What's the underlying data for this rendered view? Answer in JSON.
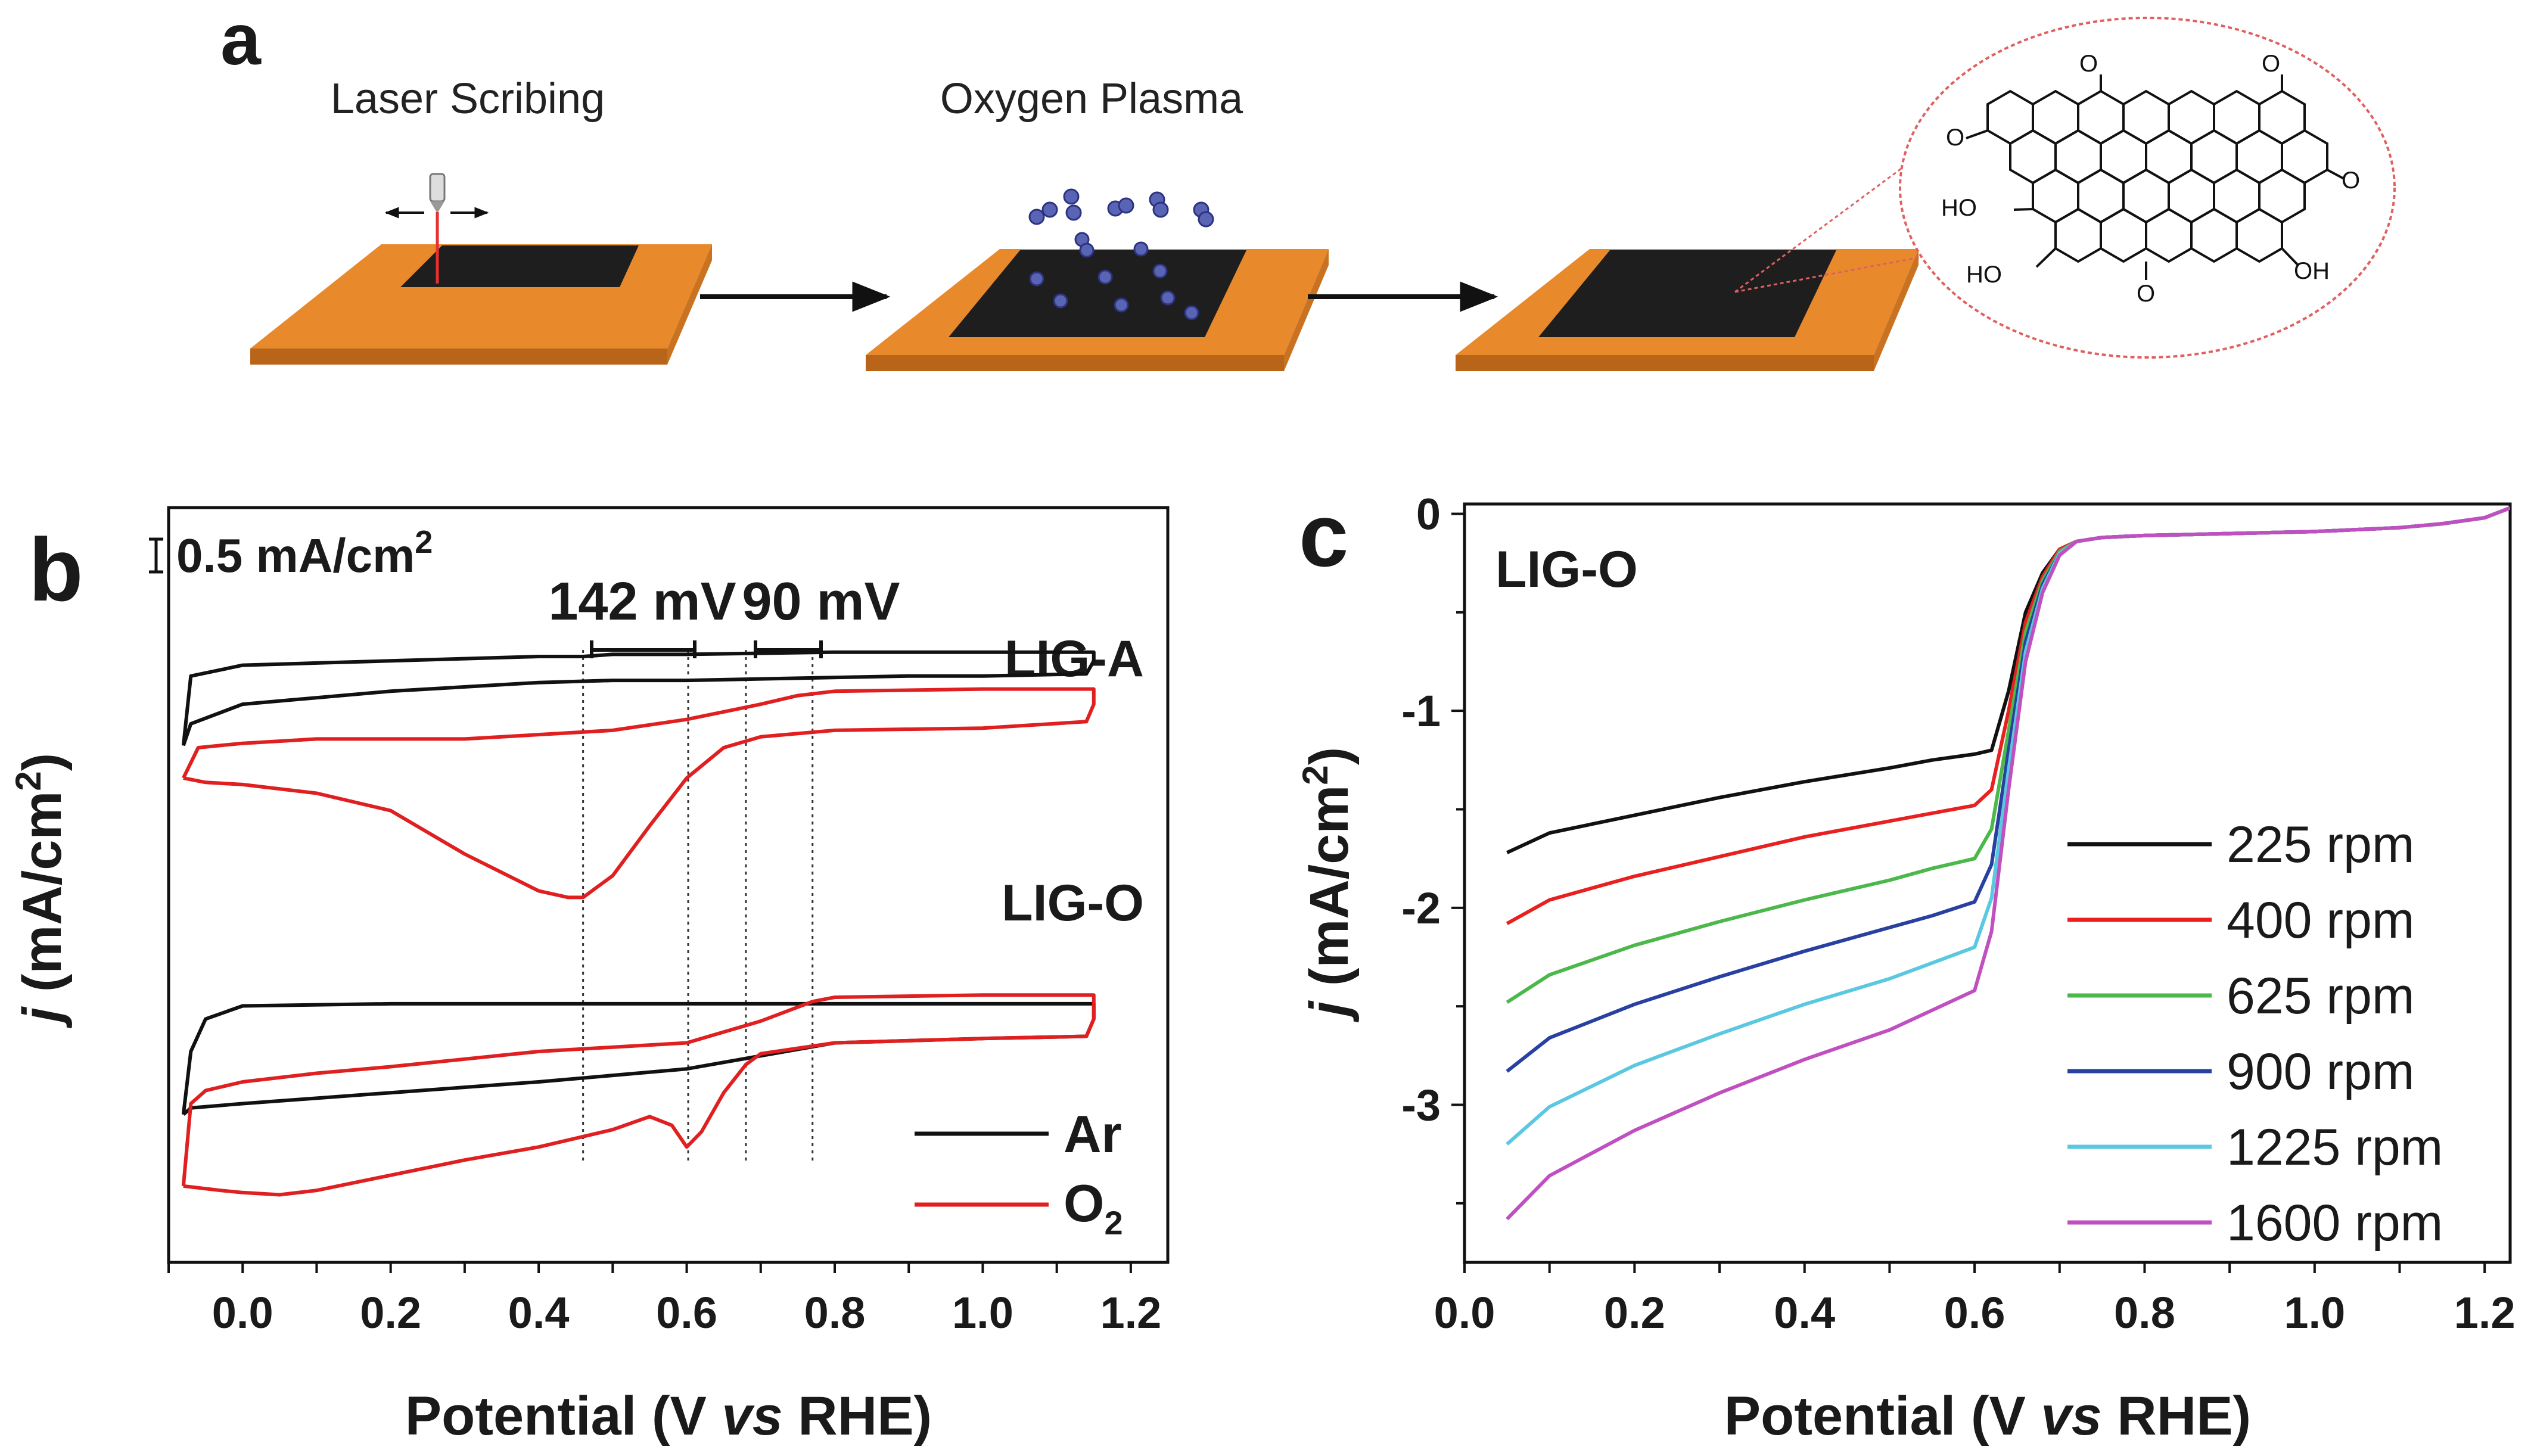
{
  "panel_a": {
    "label": "a",
    "steps": [
      "Laser Scribing",
      "Oxygen Plasma"
    ],
    "molecule_labels": {
      "carbonyl": "O",
      "hydroxyl": "HO",
      "hydroxyl_right": "OH"
    },
    "colors": {
      "substrate": "#E8892B",
      "substrate_edge": "#B8651A",
      "film": "#1E1E1E",
      "plasma": "#5A64B4",
      "laser": "#E53030",
      "inset": "#E06060"
    }
  },
  "chart_data": [
    {
      "panel": "b",
      "type": "line",
      "title": "",
      "xlabel": "Potential (V vs RHE)",
      "ylabel": "j (mA/cm2)",
      "xlim": [
        -0.1,
        1.25
      ],
      "xticks": [
        "0.0",
        "0.2",
        "0.4",
        "0.6",
        "0.8",
        "1.0",
        "1.2"
      ],
      "scale_bar": {
        "value": 0.5,
        "label": "0.5 mA/cm2"
      },
      "annotations": [
        "142 mV",
        "90 mV"
      ],
      "reference_potentials": [
        0.46,
        0.602,
        0.68,
        0.77
      ],
      "groups": [
        {
          "name": "LIG-A",
          "series": [
            {
              "name": "Ar",
              "color": "#111111",
              "x": [
                -0.08,
                -0.07,
                0.0,
                0.2,
                0.4,
                0.5,
                0.6,
                0.75,
                0.9,
                1.0,
                1.14,
                1.15,
                1.15,
                1.0,
                0.8,
                0.6,
                0.5,
                0.46,
                0.4,
                0.3,
                0.2,
                0.1,
                0.0,
                -0.07,
                -0.08
              ],
              "y": [
                -1.05,
                -0.95,
                -0.86,
                -0.8,
                -0.76,
                -0.75,
                -0.75,
                -0.74,
                -0.73,
                -0.73,
                -0.72,
                -0.66,
                -0.62,
                -0.62,
                -0.62,
                -0.63,
                -0.63,
                -0.64,
                -0.64,
                -0.65,
                -0.66,
                -0.67,
                -0.68,
                -0.73,
                -1.05
              ]
            },
            {
              "name": "O2",
              "color": "#E02020",
              "x": [
                -0.08,
                -0.05,
                0.0,
                0.1,
                0.2,
                0.3,
                0.4,
                0.44,
                0.46,
                0.5,
                0.55,
                0.6,
                0.65,
                0.7,
                0.8,
                1.0,
                1.14,
                1.15,
                1.15,
                1.0,
                0.8,
                0.75,
                0.7,
                0.6,
                0.5,
                0.3,
                0.2,
                0.1,
                0.0,
                -0.06,
                -0.08
              ],
              "y": [
                -1.2,
                -1.22,
                -1.23,
                -1.27,
                -1.35,
                -1.55,
                -1.72,
                -1.75,
                -1.75,
                -1.65,
                -1.42,
                -1.2,
                -1.06,
                -1.01,
                -0.98,
                -0.97,
                -0.94,
                -0.86,
                -0.79,
                -0.79,
                -0.8,
                -0.82,
                -0.86,
                -0.93,
                -0.98,
                -1.02,
                -1.02,
                -1.02,
                -1.04,
                -1.06,
                -1.2
              ]
            }
          ]
        },
        {
          "name": "LIG-O",
          "series": [
            {
              "name": "Ar",
              "color": "#111111",
              "x": [
                -0.08,
                -0.07,
                0.0,
                0.2,
                0.4,
                0.6,
                0.7,
                0.8,
                1.0,
                1.14,
                1.15,
                1.15,
                1.0,
                0.8,
                0.6,
                0.4,
                0.2,
                0.0,
                -0.05,
                -0.07,
                -0.08
              ],
              "y": [
                -2.75,
                -2.72,
                -2.7,
                -2.65,
                -2.6,
                -2.54,
                -2.48,
                -2.42,
                -2.4,
                -2.39,
                -2.31,
                -2.24,
                -2.24,
                -2.24,
                -2.24,
                -2.24,
                -2.24,
                -2.25,
                -2.31,
                -2.46,
                -2.75
              ]
            },
            {
              "name": "O2",
              "color": "#E02020",
              "x": [
                -0.08,
                -0.03,
                0.0,
                0.05,
                0.1,
                0.2,
                0.3,
                0.4,
                0.5,
                0.55,
                0.58,
                0.6,
                0.62,
                0.65,
                0.68,
                0.7,
                0.8,
                1.0,
                1.14,
                1.15,
                1.15,
                1.0,
                0.8,
                0.77,
                0.7,
                0.6,
                0.4,
                0.2,
                0.1,
                0.0,
                -0.05,
                -0.07,
                -0.08
              ],
              "y": [
                -3.08,
                -3.1,
                -3.11,
                -3.12,
                -3.1,
                -3.03,
                -2.96,
                -2.9,
                -2.82,
                -2.76,
                -2.8,
                -2.9,
                -2.83,
                -2.65,
                -2.52,
                -2.47,
                -2.42,
                -2.4,
                -2.39,
                -2.31,
                -2.2,
                -2.2,
                -2.21,
                -2.23,
                -2.32,
                -2.42,
                -2.46,
                -2.53,
                -2.56,
                -2.6,
                -2.64,
                -2.7,
                -3.08
              ]
            }
          ]
        }
      ],
      "legend": [
        "Ar",
        "O2"
      ]
    },
    {
      "panel": "c",
      "type": "line",
      "title": "LIG-O",
      "xlabel": "Potential (V vs RHE)",
      "ylabel": "j (mA/cm2)",
      "xlim": [
        0.0,
        1.23
      ],
      "ylim": [
        -3.8,
        0.05
      ],
      "xticks": [
        "0.0",
        "0.2",
        "0.4",
        "0.6",
        "0.8",
        "1.0",
        "1.2"
      ],
      "yticks": [
        "0",
        "-1",
        "-2",
        "-3"
      ],
      "x": [
        0.05,
        0.1,
        0.2,
        0.3,
        0.4,
        0.5,
        0.55,
        0.6,
        0.62,
        0.64,
        0.66,
        0.68,
        0.7,
        0.72,
        0.75,
        0.8,
        0.9,
        1.0,
        1.1,
        1.15,
        1.2,
        1.23
      ],
      "series": [
        {
          "name": "225 rpm",
          "color": "#111111",
          "values": [
            -1.72,
            -1.62,
            -1.53,
            -1.44,
            -1.36,
            -1.29,
            -1.25,
            -1.22,
            -1.2,
            -0.9,
            -0.5,
            -0.3,
            -0.18,
            -0.14,
            -0.12,
            -0.11,
            -0.1,
            -0.09,
            -0.07,
            -0.05,
            -0.02,
            0.03
          ]
        },
        {
          "name": "400 rpm",
          "color": "#E82020",
          "values": [
            -2.08,
            -1.96,
            -1.84,
            -1.74,
            -1.64,
            -1.56,
            -1.52,
            -1.48,
            -1.4,
            -1.0,
            -0.55,
            -0.32,
            -0.18,
            -0.14,
            -0.12,
            -0.11,
            -0.1,
            -0.09,
            -0.07,
            -0.05,
            -0.02,
            0.03
          ]
        },
        {
          "name": "625 rpm",
          "color": "#4CB84C",
          "values": [
            -2.48,
            -2.34,
            -2.19,
            -2.07,
            -1.96,
            -1.86,
            -1.8,
            -1.75,
            -1.6,
            -1.1,
            -0.6,
            -0.34,
            -0.19,
            -0.14,
            -0.12,
            -0.11,
            -0.1,
            -0.09,
            -0.07,
            -0.05,
            -0.02,
            0.03
          ]
        },
        {
          "name": "900 rpm",
          "color": "#2840A0",
          "values": [
            -2.83,
            -2.66,
            -2.49,
            -2.35,
            -2.22,
            -2.1,
            -2.04,
            -1.97,
            -1.78,
            -1.2,
            -0.65,
            -0.36,
            -0.2,
            -0.14,
            -0.12,
            -0.11,
            -0.1,
            -0.09,
            -0.07,
            -0.05,
            -0.02,
            0.03
          ]
        },
        {
          "name": "1225 rpm",
          "color": "#5AC8E0",
          "values": [
            -3.2,
            -3.01,
            -2.8,
            -2.64,
            -2.49,
            -2.36,
            -2.28,
            -2.2,
            -1.95,
            -1.3,
            -0.7,
            -0.38,
            -0.2,
            -0.14,
            -0.12,
            -0.11,
            -0.1,
            -0.09,
            -0.07,
            -0.05,
            -0.02,
            0.03
          ]
        },
        {
          "name": "1600 rpm",
          "color": "#C050C0",
          "values": [
            -3.58,
            -3.36,
            -3.13,
            -2.94,
            -2.77,
            -2.62,
            -2.52,
            -2.42,
            -2.12,
            -1.4,
            -0.75,
            -0.4,
            -0.21,
            -0.14,
            -0.12,
            -0.11,
            -0.1,
            -0.09,
            -0.07,
            -0.05,
            -0.02,
            0.03
          ]
        }
      ]
    }
  ]
}
